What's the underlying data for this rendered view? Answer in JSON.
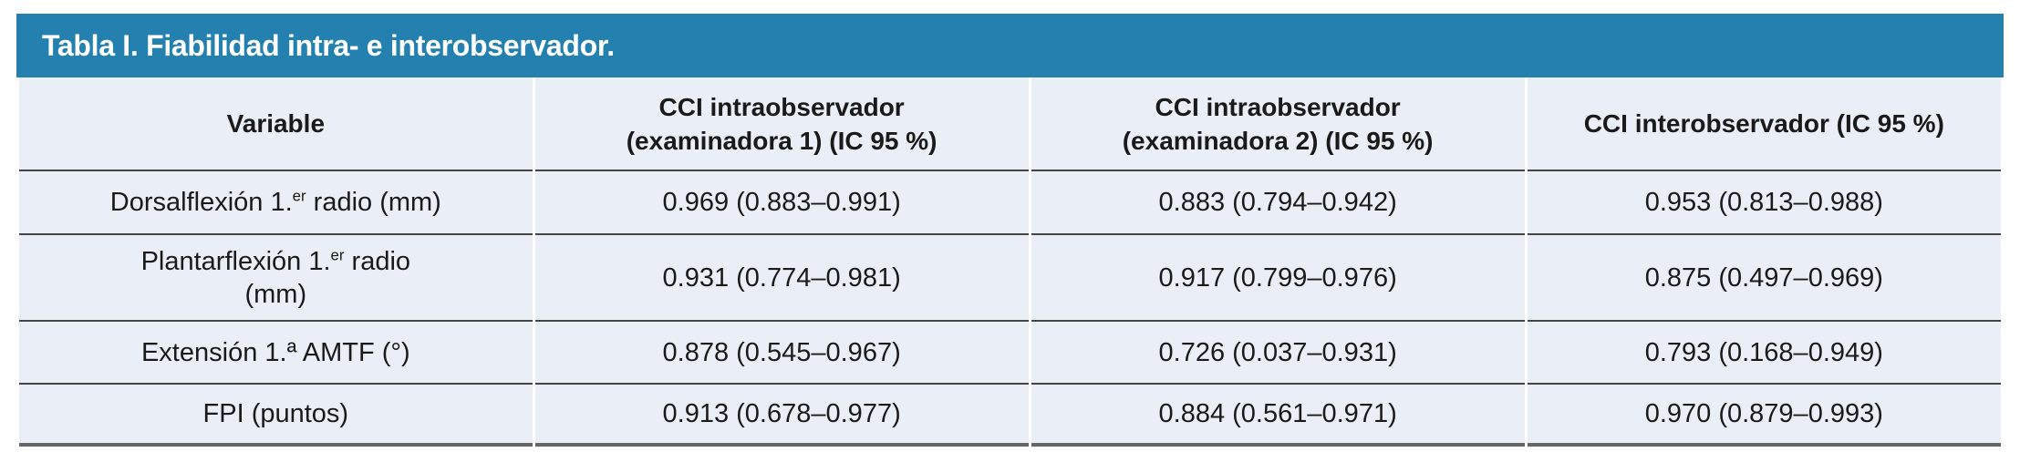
{
  "title_bar": {
    "text": "Tabla I. Fiabilidad intra- e interobservador."
  },
  "colors": {
    "title_bar_bg": "#2380AF",
    "title_text": "#FFFFFF",
    "row_bg": "#EAEEF7",
    "inner_rule": "#454545",
    "bottom_rule": "#666666",
    "body_text": "#1A1A1A"
  },
  "table": {
    "headers": [
      {
        "line1": "Variable",
        "line2": ""
      },
      {
        "line1": "CCI intraobservador",
        "line2": "(examinadora 1) (IC 95 %)"
      },
      {
        "line1": "CCI intraobservador",
        "line2": "(examinadora 2) (IC 95 %)"
      },
      {
        "line1": "CCI interobservador (IC 95 %)",
        "line2": ""
      }
    ],
    "rows": [
      {
        "variable": {
          "pre": "Dorsalflexión 1.",
          "sup": "er",
          "post": " radio (mm)",
          "note": ""
        },
        "values": [
          "0.969 (0.883–0.991)",
          "0.883 (0.794–0.942)",
          "0.953 (0.813–0.988)"
        ]
      },
      {
        "variable": {
          "pre": "Plantarflexión 1.",
          "sup": "er",
          "post": " radio",
          "note": "(mm)"
        },
        "values": [
          "0.931 (0.774–0.981)",
          "0.917 (0.799–0.976)",
          "0.875 (0.497–0.969)"
        ]
      },
      {
        "variable": {
          "pre": "Extensión 1.ª AMTF (°)",
          "sup": "",
          "post": "",
          "note": ""
        },
        "values": [
          "0.878 (0.545–0.967)",
          "0.726 (0.037–0.931)",
          "0.793 (0.168–0.949)"
        ]
      },
      {
        "variable": {
          "pre": "FPI (puntos)",
          "sup": "",
          "post": "",
          "note": ""
        },
        "values": [
          "0.913 (0.678–0.977)",
          "0.884 (0.561–0.971)",
          "0.970 (0.879–0.993)"
        ]
      }
    ]
  }
}
